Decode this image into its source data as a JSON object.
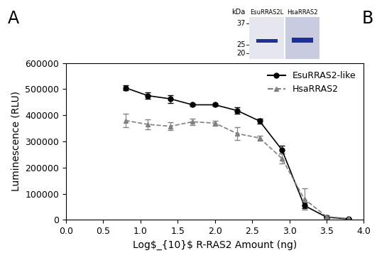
{
  "chart_data": {
    "type": "line",
    "x_label": "Log$_{10}$ R-RAS2 Amount (ng)",
    "y_label": "Luminescence (RLU)",
    "xlim": [
      0,
      4
    ],
    "xticks": [
      {
        "value": 0,
        "label": "0.0"
      },
      {
        "value": 0.5,
        "label": "0.5"
      },
      {
        "value": 1,
        "label": "1.0"
      },
      {
        "value": 1.5,
        "label": "1.5"
      },
      {
        "value": 2,
        "label": "2.0"
      },
      {
        "value": 2.5,
        "label": "2.5"
      },
      {
        "value": 3,
        "label": "3.0"
      },
      {
        "value": 3.5,
        "label": "3.5"
      },
      {
        "value": 4,
        "label": "4.0"
      }
    ],
    "ylim": [
      0,
      600000
    ],
    "yticks": [
      0,
      100000,
      200000,
      300000,
      400000,
      500000,
      600000
    ],
    "legend": "upper right",
    "panel_labels": [
      "A",
      "B"
    ],
    "x": [
      0.8,
      1.1,
      1.4,
      1.7,
      2.0,
      2.3,
      2.6,
      2.9,
      3.2,
      3.5,
      3.8
    ],
    "series": [
      {
        "name": "EsuRRAS2-like",
        "color": "#000000",
        "marker": "circle",
        "line_style": "solid",
        "values": [
          505000,
          475000,
          463000,
          440000,
          440000,
          418000,
          378000,
          268000,
          55000,
          10000,
          3000
        ],
        "errors": [
          10000,
          12000,
          15000,
          5000,
          5000,
          12000,
          10000,
          15000,
          10000,
          3000,
          1000
        ]
      },
      {
        "name": "HsaRRAS2",
        "color": "#808080",
        "marker": "triangle",
        "line_style": "dashed",
        "values": [
          380000,
          365000,
          358000,
          375000,
          370000,
          330000,
          313000,
          235000,
          80000,
          12000,
          5000
        ],
        "errors": [
          25000,
          18000,
          15000,
          12000,
          10000,
          25000,
          10000,
          20000,
          40000,
          5000,
          2000
        ]
      }
    ],
    "inset": {
      "unit": "kDa",
      "ladder": [
        37,
        25,
        20
      ],
      "lanes": [
        "EsuRRAS2L",
        "HsaRRAS2"
      ],
      "band_kda": 27
    }
  }
}
